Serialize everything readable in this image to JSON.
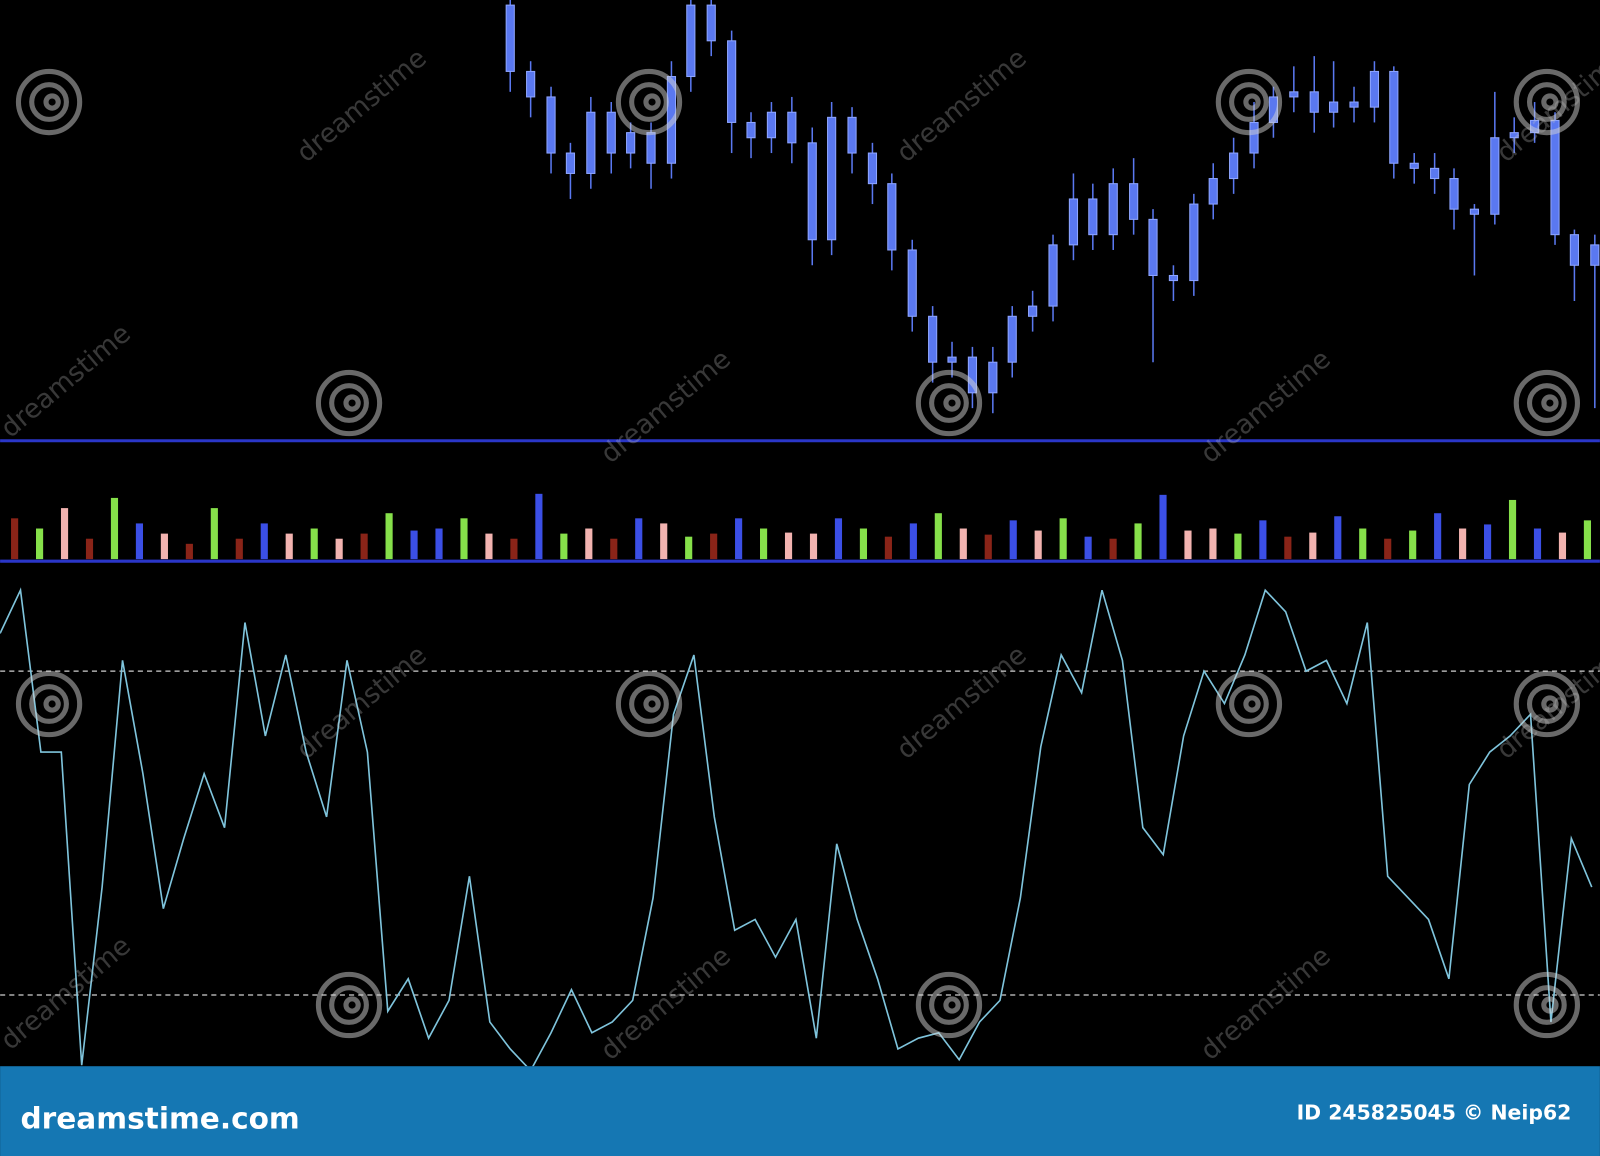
{
  "watermark": "dreamstime",
  "footer": {
    "logo": "dreamstime.com",
    "credit": "ID 245825045 © Neip62"
  },
  "chart_data": [
    {
      "type": "candlestick",
      "color": "#5a78f0",
      "xlim": [
        0,
        1568
      ],
      "ylim": [
        0,
        440
      ],
      "x": [
        500,
        520,
        540,
        559,
        579,
        599,
        618,
        638,
        658,
        677,
        697,
        717,
        736,
        756,
        776,
        796,
        815,
        835,
        855,
        874,
        894,
        914,
        933,
        953,
        973,
        992,
        1012,
        1032,
        1052,
        1071,
        1091,
        1111,
        1130,
        1150,
        1170,
        1189,
        1209,
        1229,
        1248,
        1268,
        1288,
        1307,
        1327,
        1347,
        1366,
        1386,
        1406,
        1425,
        1445,
        1465,
        1484,
        1504,
        1524,
        1543,
        1563
      ],
      "open": [
        435,
        370,
        345,
        290,
        270,
        330,
        290,
        310,
        280,
        365,
        435,
        400,
        320,
        305,
        330,
        300,
        205,
        325,
        290,
        260,
        195,
        130,
        85,
        90,
        55,
        85,
        130,
        140,
        200,
        245,
        210,
        260,
        225,
        170,
        165,
        240,
        265,
        290,
        320,
        345,
        350,
        330,
        340,
        335,
        370,
        280,
        275,
        265,
        235,
        230,
        305,
        310,
        322,
        210,
        180
      ],
      "high": [
        440,
        380,
        355,
        300,
        345,
        340,
        320,
        320,
        380,
        440,
        440,
        410,
        330,
        340,
        345,
        315,
        340,
        335,
        300,
        270,
        205,
        140,
        105,
        100,
        100,
        140,
        155,
        210,
        270,
        260,
        275,
        285,
        235,
        180,
        250,
        280,
        305,
        340,
        355,
        375,
        385,
        380,
        355,
        380,
        375,
        290,
        290,
        275,
        240,
        350,
        325,
        340,
        330,
        215,
        210
      ],
      "low": [
        350,
        325,
        270,
        245,
        255,
        270,
        275,
        255,
        265,
        350,
        385,
        290,
        285,
        290,
        280,
        180,
        190,
        270,
        240,
        175,
        115,
        65,
        70,
        40,
        35,
        70,
        115,
        125,
        185,
        195,
        195,
        210,
        85,
        145,
        150,
        225,
        250,
        275,
        305,
        330,
        310,
        315,
        320,
        320,
        265,
        260,
        250,
        215,
        170,
        220,
        290,
        300,
        200,
        145,
        40
      ],
      "close": [
        370,
        345,
        290,
        270,
        330,
        290,
        310,
        280,
        365,
        435,
        400,
        320,
        305,
        330,
        300,
        205,
        325,
        290,
        260,
        195,
        130,
        85,
        90,
        55,
        85,
        130,
        140,
        200,
        245,
        210,
        260,
        225,
        170,
        165,
        240,
        265,
        290,
        320,
        345,
        350,
        330,
        340,
        335,
        370,
        280,
        275,
        265,
        235,
        230,
        305,
        310,
        322,
        210,
        180,
        200
      ]
    },
    {
      "type": "bar",
      "ylim": [
        0,
        70
      ],
      "values": [
        40,
        30,
        50,
        20,
        60,
        35,
        25,
        15,
        50,
        20,
        35,
        25,
        30,
        20,
        25,
        45,
        28,
        30,
        40,
        25,
        20,
        64,
        25,
        30,
        20,
        40,
        35,
        22,
        25,
        40,
        30,
        26,
        25,
        40,
        30,
        22,
        35,
        45,
        30,
        24,
        38,
        28,
        40,
        22,
        20,
        35,
        63,
        28,
        30,
        25,
        38,
        22,
        26,
        42,
        30,
        20,
        28,
        45,
        30,
        34,
        58,
        30,
        26,
        38
      ],
      "colors": [
        "#8a2418",
        "#86e04a",
        "#f2b3b0",
        "#8a2418",
        "#86e04a",
        "#3b4fe6",
        "#f2b3b0",
        "#8a2418",
        "#86e04a",
        "#8a2418",
        "#3b4fe6",
        "#f2b3b0",
        "#86e04a",
        "#f2b3b0",
        "#8a2418",
        "#86e04a",
        "#3b4fe6",
        "#3b4fe6",
        "#86e04a",
        "#f2b3b0",
        "#8a2418",
        "#3b4fe6",
        "#86e04a",
        "#f2b3b0",
        "#8a2418",
        "#3b4fe6",
        "#f2b3b0",
        "#86e04a",
        "#8a2418",
        "#3b4fe6",
        "#86e04a",
        "#f2b3b0",
        "#f2b3b0",
        "#3b4fe6",
        "#86e04a",
        "#8a2418",
        "#3b4fe6",
        "#86e04a",
        "#f2b3b0",
        "#8a2418",
        "#3b4fe6",
        "#f2b3b0",
        "#86e04a",
        "#3b4fe6",
        "#8a2418",
        "#86e04a",
        "#3b4fe6",
        "#f2b3b0",
        "#f2b3b0",
        "#86e04a",
        "#3b4fe6",
        "#8a2418",
        "#f2b3b0",
        "#3b4fe6",
        "#86e04a",
        "#8a2418",
        "#86e04a",
        "#3b4fe6",
        "#f2b3b0",
        "#3b4fe6",
        "#86e04a",
        "#3b4fe6",
        "#f2b3b0",
        "#86e04a"
      ]
    },
    {
      "type": "line",
      "color": "#7fc4dc",
      "xlim": [
        0,
        1568
      ],
      "ylim": [
        0,
        100
      ],
      "hlines": [
        80,
        20
      ],
      "x": [
        0,
        20,
        40,
        60,
        80,
        100,
        120,
        140,
        160,
        180,
        200,
        220,
        240,
        260,
        280,
        300,
        320,
        340,
        360,
        380,
        400,
        420,
        440,
        460,
        480,
        500,
        520,
        540,
        560,
        580,
        600,
        620,
        640,
        660,
        680,
        700,
        720,
        740,
        760,
        780,
        800,
        820,
        840,
        860,
        880,
        900,
        920,
        940,
        960,
        980,
        1000,
        1020,
        1040,
        1060,
        1080,
        1100,
        1120,
        1140,
        1160,
        1180,
        1200,
        1220,
        1240,
        1260,
        1280,
        1300,
        1320,
        1340,
        1360,
        1380,
        1400,
        1420,
        1440,
        1460,
        1480,
        1500,
        1520,
        1540,
        1560
      ],
      "values": [
        87,
        95,
        65,
        65,
        7,
        40,
        82,
        61,
        36,
        49,
        61,
        51,
        89,
        68,
        83,
        65,
        53,
        82,
        65,
        17,
        23,
        12,
        19,
        42,
        15,
        10,
        6,
        13,
        21,
        13,
        15,
        19,
        38,
        72,
        83,
        53,
        32,
        34,
        27,
        34,
        12,
        48,
        34,
        23,
        10,
        12,
        13,
        8,
        15,
        19,
        38,
        66,
        83,
        76,
        95,
        82,
        51,
        46,
        68,
        80,
        74,
        83,
        95,
        91,
        80,
        82,
        74,
        89,
        42,
        38,
        34,
        23,
        59,
        65,
        68,
        72,
        15,
        49,
        40
      ]
    }
  ]
}
